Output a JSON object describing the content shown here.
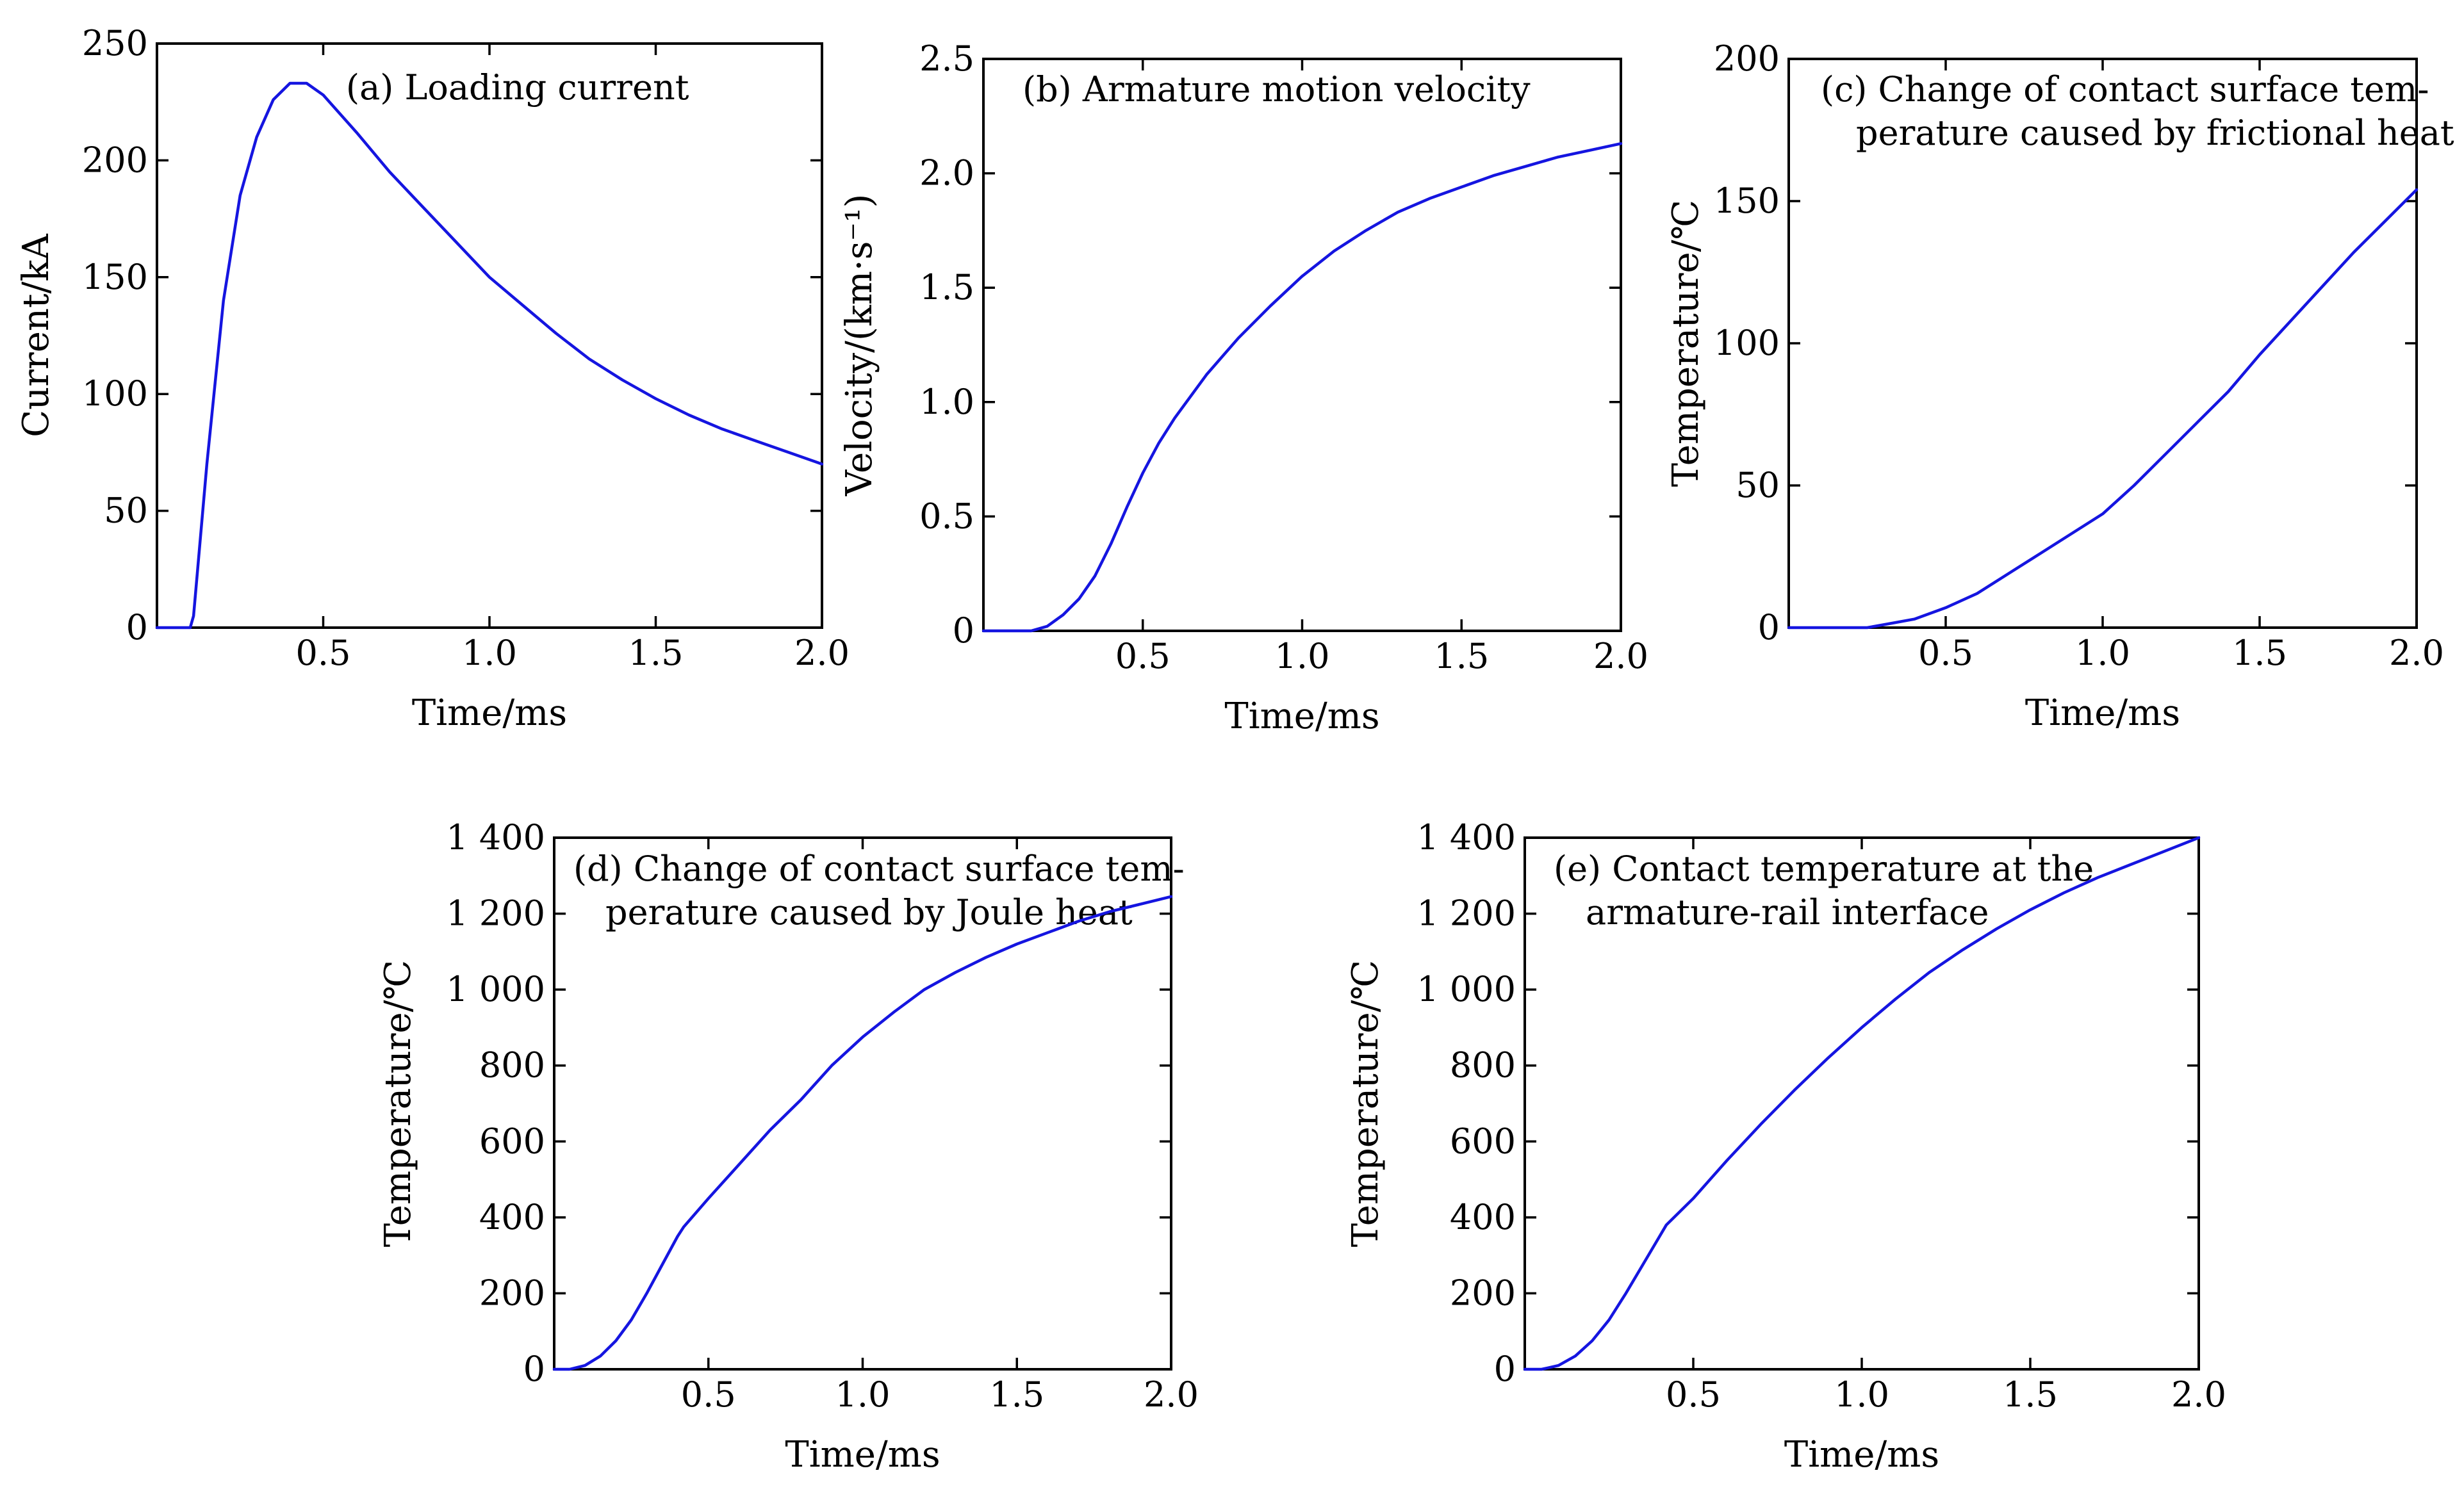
{
  "figure": {
    "series_color": "#1515e0"
  },
  "chart_data": [
    {
      "id": "a",
      "type": "line",
      "title_lines": [
        "(a) Loading current"
      ],
      "xlabel": "Time/ms",
      "ylabel": "Current/kA",
      "xlim": [
        0,
        2.0
      ],
      "ylim": [
        0,
        250
      ],
      "xticks": [
        0.5,
        1.0,
        1.5,
        2.0
      ],
      "xticklabels": [
        "0.5",
        "1.0",
        "1.5",
        "2.0"
      ],
      "yticks": [
        0,
        50,
        100,
        150,
        200,
        250
      ],
      "yticklabels": [
        "0",
        "50",
        "100",
        "150",
        "200",
        "250"
      ],
      "series": [
        {
          "name": "current",
          "x": [
            0,
            0.1,
            0.11,
            0.15,
            0.2,
            0.25,
            0.3,
            0.35,
            0.4,
            0.45,
            0.5,
            0.6,
            0.7,
            0.8,
            0.9,
            1.0,
            1.1,
            1.2,
            1.3,
            1.4,
            1.5,
            1.6,
            1.7,
            1.8,
            1.9,
            2.0
          ],
          "y": [
            0,
            0,
            5,
            70,
            140,
            185,
            210,
            226,
            233,
            233,
            228,
            212,
            195,
            180,
            165,
            150,
            138,
            126,
            115,
            106,
            98,
            91,
            85,
            80,
            75,
            70
          ]
        }
      ]
    },
    {
      "id": "b",
      "type": "line",
      "title_lines": [
        "(b) Armature motion velocity"
      ],
      "xlabel": "Time/ms",
      "ylabel": "Velocity/(km·s⁻¹)",
      "xlim": [
        0,
        2.0
      ],
      "ylim": [
        0,
        2.5
      ],
      "xticks": [
        0.5,
        1.0,
        1.5,
        2.0
      ],
      "xticklabels": [
        "0.5",
        "1.0",
        "1.5",
        "2.0"
      ],
      "yticks": [
        0,
        0.5,
        1.0,
        1.5,
        2.0,
        2.5
      ],
      "yticklabels": [
        "0",
        "0.5",
        "1.0",
        "1.5",
        "2.0",
        "2.5"
      ],
      "series": [
        {
          "name": "velocity",
          "x": [
            0,
            0.15,
            0.2,
            0.25,
            0.3,
            0.35,
            0.4,
            0.45,
            0.5,
            0.55,
            0.6,
            0.7,
            0.8,
            0.9,
            1.0,
            1.1,
            1.2,
            1.3,
            1.4,
            1.5,
            1.6,
            1.7,
            1.8,
            1.9,
            2.0
          ],
          "y": [
            0,
            0,
            0.02,
            0.07,
            0.14,
            0.24,
            0.38,
            0.54,
            0.69,
            0.82,
            0.93,
            1.12,
            1.28,
            1.42,
            1.55,
            1.66,
            1.75,
            1.83,
            1.89,
            1.94,
            1.99,
            2.03,
            2.07,
            2.1,
            2.13
          ]
        }
      ]
    },
    {
      "id": "c",
      "type": "line",
      "title_lines": [
        "(c) Change of contact surface tem-",
        "perature caused by frictional heat"
      ],
      "xlabel": "Time/ms",
      "ylabel": "Temperature/℃",
      "xlim": [
        0,
        2.0
      ],
      "ylim": [
        0,
        200
      ],
      "xticks": [
        0.5,
        1.0,
        1.5,
        2.0
      ],
      "xticklabels": [
        "0.5",
        "1.0",
        "1.5",
        "2.0"
      ],
      "yticks": [
        0,
        50,
        100,
        150,
        200
      ],
      "yticklabels": [
        "0",
        "50",
        "100",
        "150",
        "200"
      ],
      "series": [
        {
          "name": "frictional",
          "x": [
            0,
            0.25,
            0.3,
            0.4,
            0.5,
            0.6,
            0.7,
            0.8,
            0.9,
            1.0,
            1.1,
            1.2,
            1.3,
            1.4,
            1.5,
            1.6,
            1.7,
            1.8,
            1.9,
            2.0
          ],
          "y": [
            0,
            0,
            1,
            3,
            7,
            12,
            19,
            26,
            33,
            40,
            50,
            61,
            72,
            83,
            96,
            108,
            120,
            132,
            143,
            154
          ]
        }
      ]
    },
    {
      "id": "d",
      "type": "line",
      "title_lines": [
        "(d) Change of contact surface tem-",
        "perature caused by Joule heat"
      ],
      "xlabel": "Time/ms",
      "ylabel": "Temperature/℃",
      "xlim": [
        0,
        2.0
      ],
      "ylim": [
        0,
        1400
      ],
      "xticks": [
        0.5,
        1.0,
        1.5,
        2.0
      ],
      "xticklabels": [
        "0.5",
        "1.0",
        "1.5",
        "2.0"
      ],
      "yticks": [
        0,
        200,
        400,
        600,
        800,
        1000,
        1200,
        1400
      ],
      "yticklabels": [
        "0",
        "200",
        "400",
        "600",
        "800",
        "1 000",
        "1 200",
        "1 400"
      ],
      "series": [
        {
          "name": "joule",
          "x": [
            0,
            0.05,
            0.1,
            0.15,
            0.2,
            0.25,
            0.3,
            0.35,
            0.4,
            0.42,
            0.5,
            0.6,
            0.7,
            0.8,
            0.9,
            1.0,
            1.1,
            1.2,
            1.3,
            1.4,
            1.5,
            1.6,
            1.7,
            1.8,
            1.9,
            2.0
          ],
          "y": [
            0,
            0,
            10,
            35,
            75,
            130,
            200,
            275,
            350,
            375,
            450,
            540,
            630,
            710,
            800,
            875,
            940,
            1000,
            1045,
            1085,
            1120,
            1150,
            1180,
            1205,
            1225,
            1245
          ]
        }
      ]
    },
    {
      "id": "e",
      "type": "line",
      "title_lines": [
        "(e) Contact temperature at the",
        "armature-rail interface"
      ],
      "xlabel": "Time/ms",
      "ylabel": "Temperature/℃",
      "xlim": [
        0,
        2.0
      ],
      "ylim": [
        0,
        1400
      ],
      "xticks": [
        0.5,
        1.0,
        1.5,
        2.0
      ],
      "xticklabels": [
        "0.5",
        "1.0",
        "1.5",
        "2.0"
      ],
      "yticks": [
        0,
        200,
        400,
        600,
        800,
        1000,
        1200,
        1400
      ],
      "yticklabels": [
        "0",
        "200",
        "400",
        "600",
        "800",
        "1 000",
        "1 200",
        "1 400"
      ],
      "series": [
        {
          "name": "contact",
          "x": [
            0,
            0.05,
            0.1,
            0.15,
            0.2,
            0.25,
            0.3,
            0.35,
            0.4,
            0.42,
            0.5,
            0.6,
            0.7,
            0.8,
            0.9,
            1.0,
            1.1,
            1.2,
            1.3,
            1.4,
            1.5,
            1.6,
            1.7,
            1.8,
            1.9,
            2.0
          ],
          "y": [
            0,
            0,
            10,
            35,
            75,
            130,
            200,
            275,
            350,
            380,
            450,
            550,
            645,
            735,
            820,
            900,
            975,
            1045,
            1105,
            1160,
            1210,
            1255,
            1295,
            1330,
            1365,
            1400
          ]
        }
      ]
    }
  ]
}
